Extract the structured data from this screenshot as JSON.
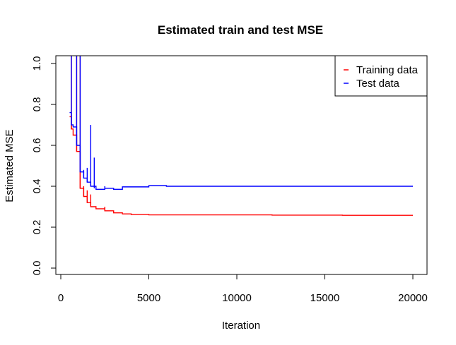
{
  "chart_data": {
    "type": "line",
    "title": "Estimated train and test MSE",
    "xlabel": "Iteration",
    "ylabel": "Estimated MSE",
    "xlim": [
      0,
      20000
    ],
    "ylim": [
      0.0,
      1.0
    ],
    "x_ticks": [
      0,
      5000,
      10000,
      15000,
      20000
    ],
    "y_ticks": [
      0.0,
      0.2,
      0.4,
      0.6,
      0.8,
      1.0
    ],
    "x_tick_labels": [
      "0",
      "5000",
      "10000",
      "15000",
      "20000"
    ],
    "y_tick_labels": [
      "0.0",
      "0.2",
      "0.4",
      "0.6",
      "0.8",
      "1.0"
    ],
    "legend": {
      "position": "top-right"
    },
    "series": [
      {
        "name": "Training data",
        "color": "#ff0000",
        "points": [
          [
            500,
            0.74
          ],
          [
            600,
            0.68
          ],
          [
            700,
            0.65
          ],
          [
            900,
            0.57
          ],
          [
            1100,
            0.39
          ],
          [
            1300,
            0.35
          ],
          [
            1500,
            0.32
          ],
          [
            1700,
            0.3
          ],
          [
            2000,
            0.29
          ],
          [
            2500,
            0.28
          ],
          [
            3000,
            0.27
          ],
          [
            3500,
            0.265
          ],
          [
            4000,
            0.262
          ],
          [
            5000,
            0.26
          ],
          [
            8000,
            0.26
          ],
          [
            12000,
            0.259
          ],
          [
            16000,
            0.258
          ],
          [
            20000,
            0.258
          ]
        ],
        "spikes": [
          [
            600,
            0.68,
            1.05
          ],
          [
            900,
            0.57,
            1.05
          ],
          [
            1100,
            0.39,
            1.05
          ],
          [
            1300,
            0.35,
            0.4
          ],
          [
            1500,
            0.32,
            0.38
          ],
          [
            1700,
            0.3,
            0.36
          ],
          [
            2500,
            0.28,
            0.3
          ]
        ]
      },
      {
        "name": "Test data",
        "color": "#0000ff",
        "points": [
          [
            500,
            0.76
          ],
          [
            600,
            0.7
          ],
          [
            700,
            0.69
          ],
          [
            900,
            0.6
          ],
          [
            1100,
            0.47
          ],
          [
            1300,
            0.44
          ],
          [
            1500,
            0.42
          ],
          [
            1700,
            0.4
          ],
          [
            2000,
            0.385
          ],
          [
            2500,
            0.39
          ],
          [
            3000,
            0.385
          ],
          [
            3500,
            0.397
          ],
          [
            4000,
            0.397
          ],
          [
            5000,
            0.403
          ],
          [
            6000,
            0.4
          ],
          [
            8000,
            0.4
          ],
          [
            12000,
            0.4
          ],
          [
            16000,
            0.4
          ],
          [
            20000,
            0.4
          ]
        ],
        "spikes": [
          [
            600,
            0.7,
            1.05
          ],
          [
            900,
            0.6,
            1.05
          ],
          [
            1100,
            0.47,
            1.05
          ],
          [
            1300,
            0.44,
            0.48
          ],
          [
            1500,
            0.42,
            0.49
          ],
          [
            1700,
            0.4,
            0.7
          ],
          [
            1900,
            0.39,
            0.54
          ],
          [
            2500,
            0.39,
            0.4
          ]
        ]
      }
    ]
  }
}
